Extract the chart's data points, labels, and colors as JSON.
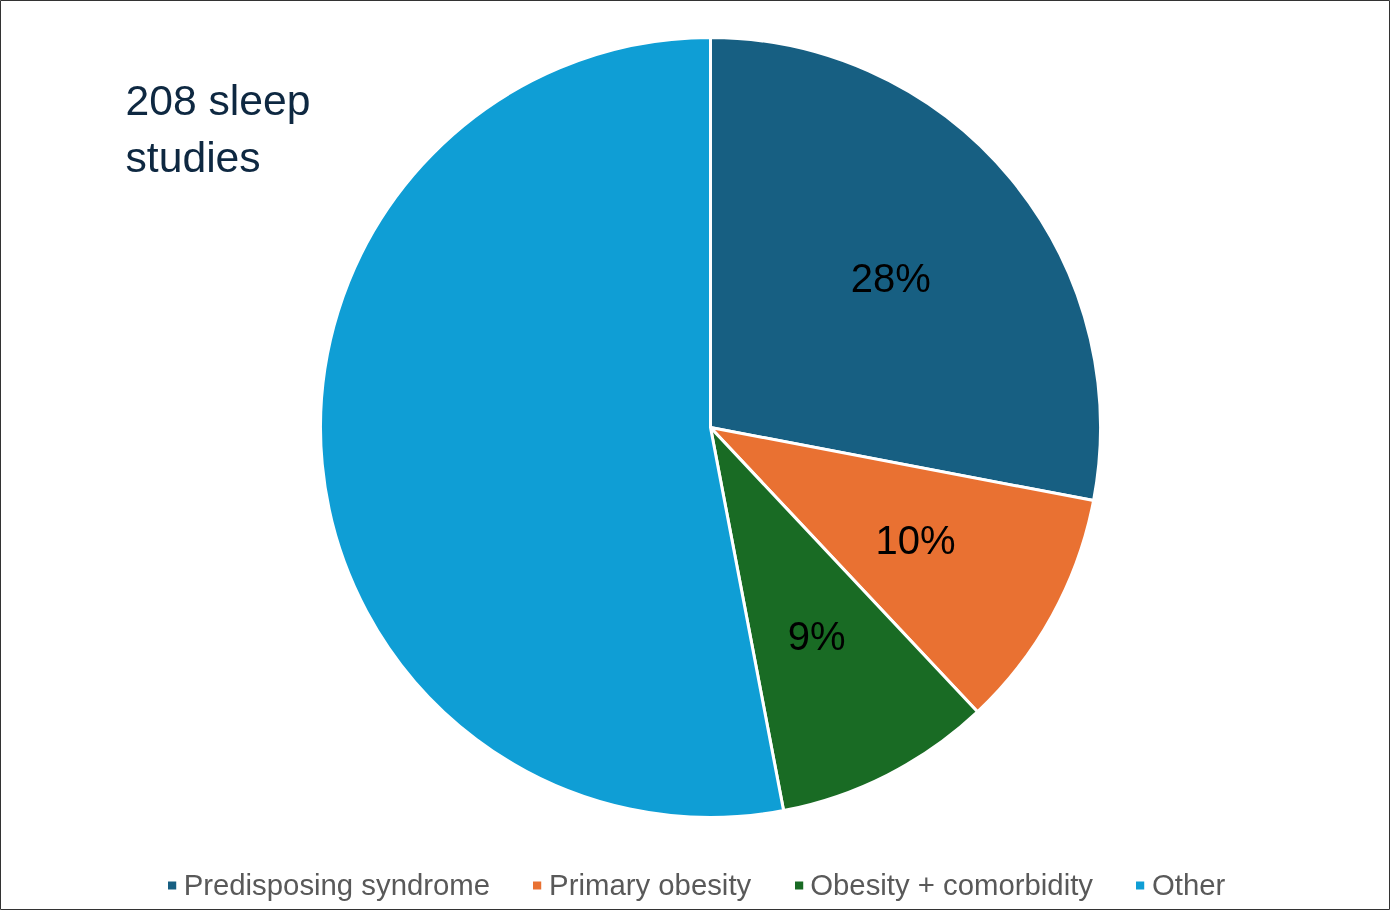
{
  "chart_data": {
    "type": "pie",
    "categories": [
      "Predisposing syndrome",
      "Primary obesity",
      "Obesity + comorbidity",
      "Other"
    ],
    "values": [
      28,
      10,
      9,
      53
    ],
    "colors": [
      "#175f82",
      "#e97132",
      "#196b24",
      "#0f9ed5"
    ],
    "value_labels": [
      "28%",
      "10%",
      "9%",
      null
    ],
    "annotations": [
      "208 sleep studies"
    ],
    "legend": "bottom"
  }
}
